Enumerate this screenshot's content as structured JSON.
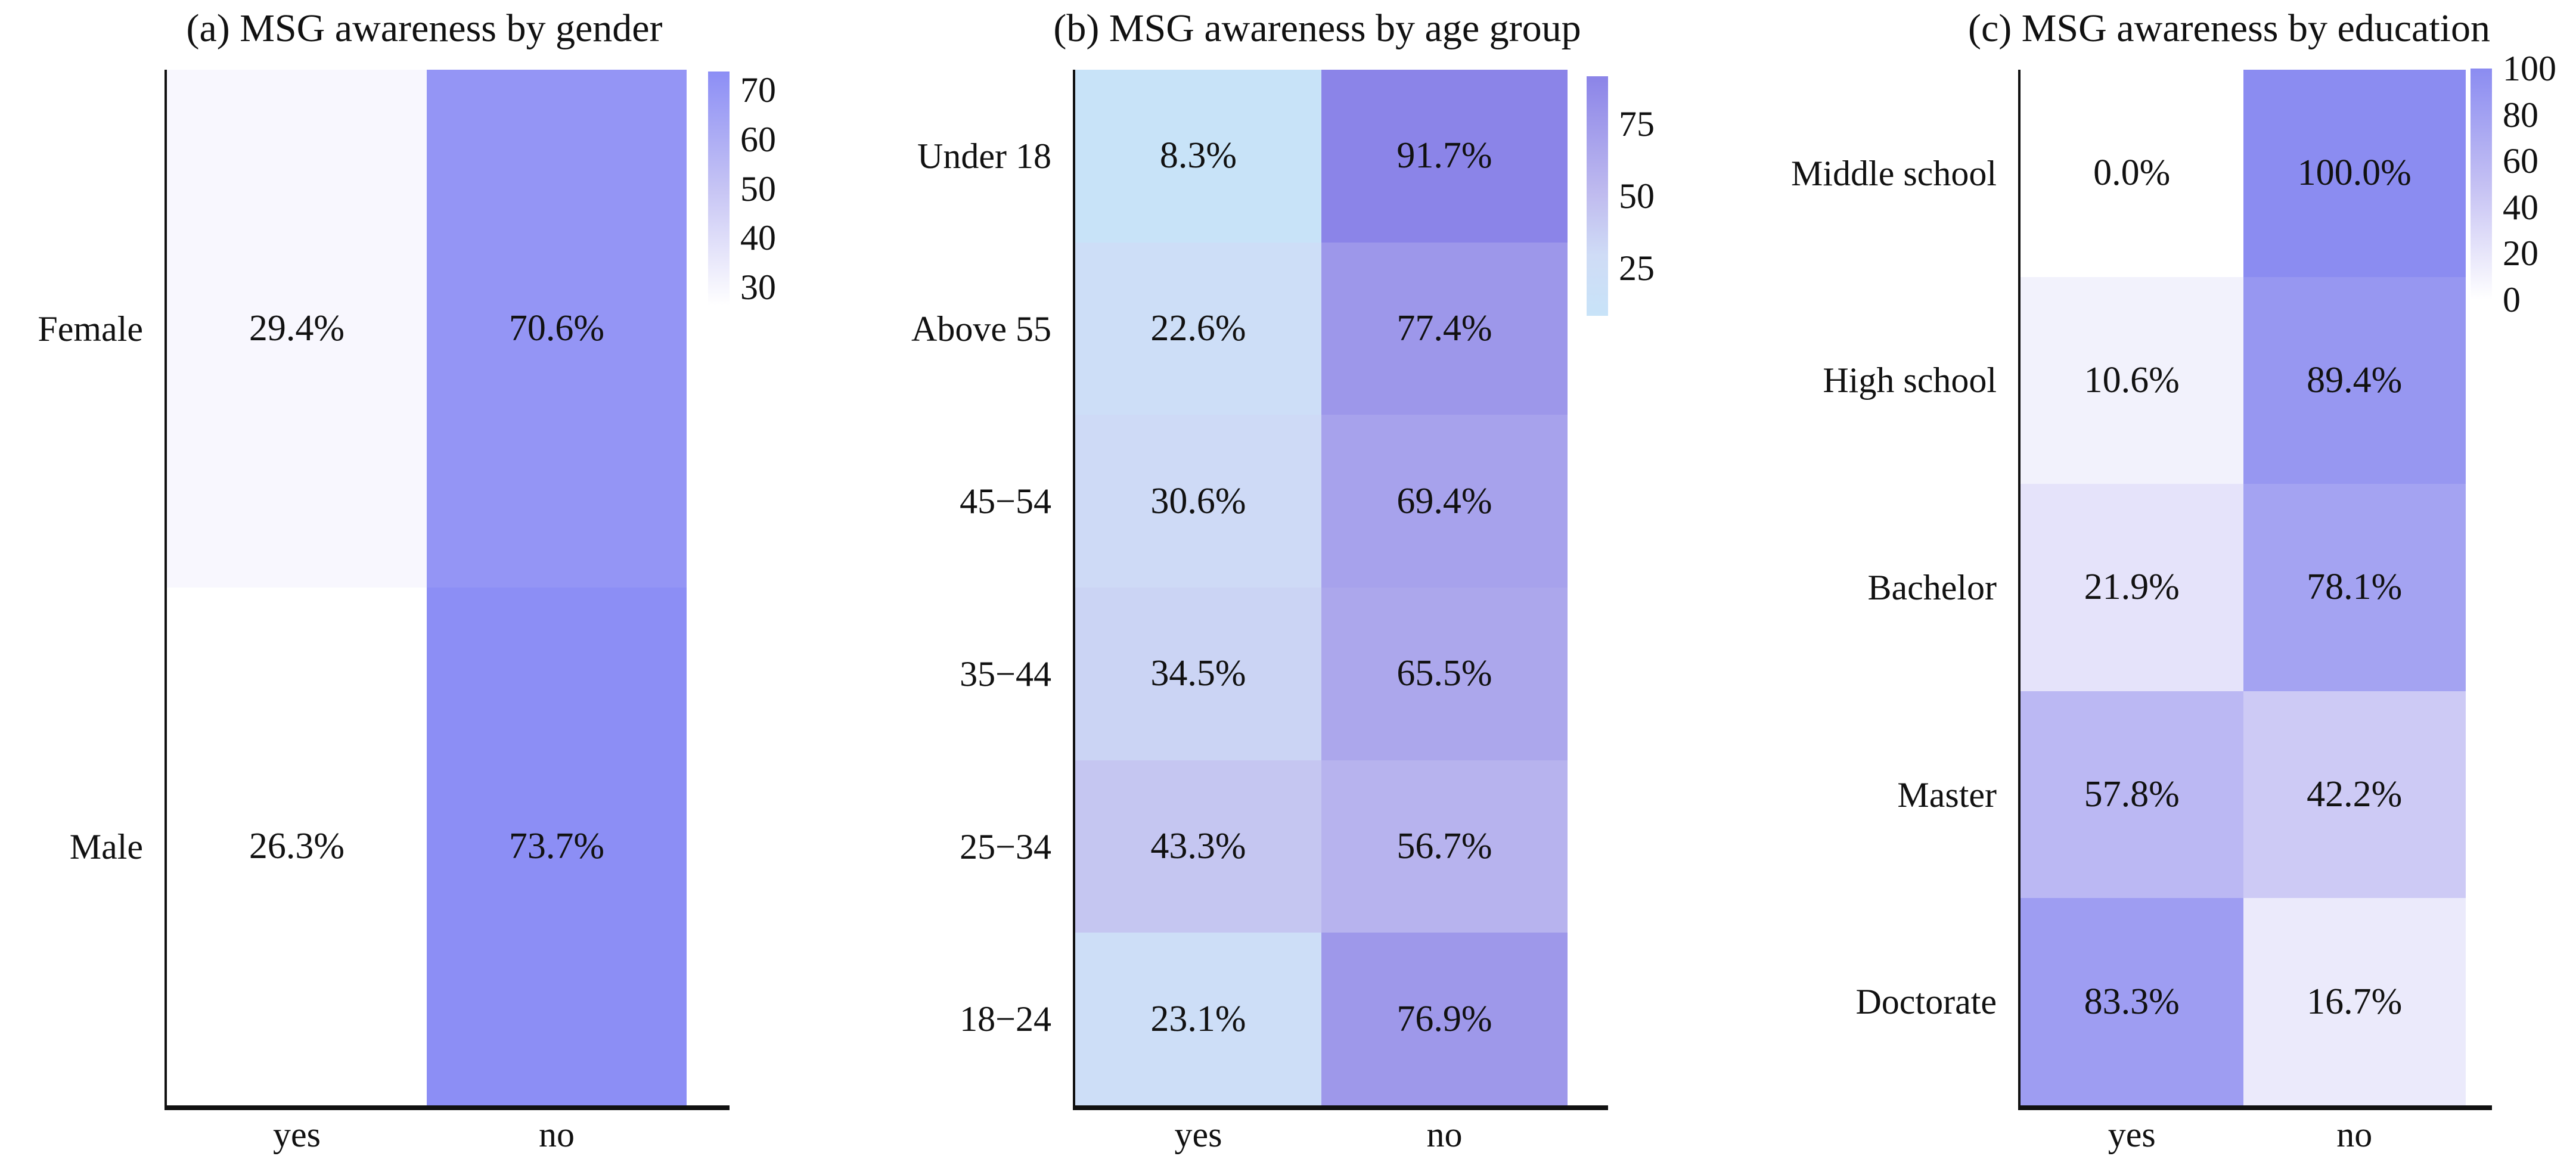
{
  "figure": {
    "background": "#ffffff",
    "text_color": "#111111",
    "spine_color": "#111111"
  },
  "chart_data": [
    {
      "type": "heatmap",
      "title": "(a) MSG awareness by gender",
      "x_categories": [
        "yes",
        "no"
      ],
      "y_categories": [
        "Female",
        "Male"
      ],
      "values_percent": [
        [
          29.4,
          70.6
        ],
        [
          26.3,
          73.7
        ]
      ],
      "value_suffix": "%",
      "colorbar": {
        "vmin": 26.3,
        "vmax": 73.7,
        "ticks": [
          70,
          60,
          50,
          40,
          30
        ]
      },
      "colormap_stops": [
        {
          "t": 0.0,
          "color": "#ffffff"
        },
        {
          "t": 0.5,
          "color": "#c6c4f4"
        },
        {
          "t": 1.0,
          "color": "#8c8ef5"
        }
      ]
    },
    {
      "type": "heatmap",
      "title": "(b) MSG awareness by age group",
      "x_categories": [
        "yes",
        "no"
      ],
      "y_categories": [
        "Under 18",
        "Above 55",
        "45−54",
        "35−44",
        "25−34",
        "18−24"
      ],
      "values_percent": [
        [
          8.3,
          91.7
        ],
        [
          22.6,
          77.4
        ],
        [
          30.6,
          69.4
        ],
        [
          34.5,
          65.5
        ],
        [
          43.3,
          56.7
        ],
        [
          23.1,
          76.9
        ]
      ],
      "value_suffix": "%",
      "colorbar": {
        "vmin": 8.3,
        "vmax": 91.7,
        "ticks": [
          75,
          50,
          25
        ]
      },
      "colormap_stops": [
        {
          "t": 0.0,
          "color": "#c8e3f8"
        },
        {
          "t": 0.25,
          "color": "#cfdcf6"
        },
        {
          "t": 0.5,
          "color": "#c0bcef"
        },
        {
          "t": 1.0,
          "color": "#8b84e8"
        }
      ]
    },
    {
      "type": "heatmap",
      "title": "(c) MSG awareness by education",
      "x_categories": [
        "yes",
        "no"
      ],
      "y_categories": [
        "Middle school",
        "High school",
        "Bachelor",
        "Master",
        "Doctorate"
      ],
      "values_percent": [
        [
          0.0,
          100.0
        ],
        [
          10.6,
          89.4
        ],
        [
          21.9,
          78.1
        ],
        [
          57.8,
          42.2
        ],
        [
          83.3,
          16.7
        ]
      ],
      "value_suffix": "%",
      "colorbar": {
        "vmin": 0,
        "vmax": 100,
        "ticks": [
          100,
          80,
          60,
          40,
          20,
          0
        ]
      },
      "colormap_stops": [
        {
          "t": 0.0,
          "color": "#ffffff"
        },
        {
          "t": 0.5,
          "color": "#c4c0f3"
        },
        {
          "t": 1.0,
          "color": "#8b8cf1"
        }
      ]
    }
  ]
}
